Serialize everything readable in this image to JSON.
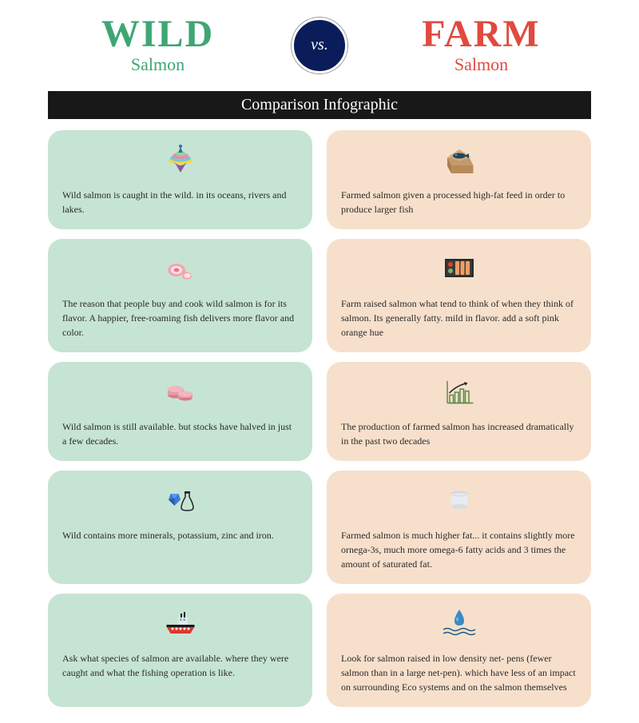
{
  "header": {
    "left_title": "WILD",
    "left_sub": "Salmon",
    "left_color": "#3fa673",
    "right_title": "FARM",
    "right_sub": "Salmon",
    "right_color": "#e04a3f",
    "vs_label": "vs.",
    "vs_bg": "#0a1d5a"
  },
  "banner": {
    "text": "Comparison Infographic",
    "bg": "#181818"
  },
  "colors": {
    "wild_card_bg": "#c6e4d4",
    "farm_card_bg": "#f7e0cb"
  },
  "rows": [
    {
      "wild": {
        "icon": "spintop",
        "text": "Wild salmon is caught in the wild. in its oceans, rivers and lakes."
      },
      "farm": {
        "icon": "box-fish",
        "text": "Farmed salmon given a processed high-fat feed in order to produce larger fish"
      }
    },
    {
      "wild": {
        "icon": "meat",
        "text": "The reason that people buy and cook wild salmon is for its flavor. A happier, free-roaming fish delivers more flavor and color."
      },
      "farm": {
        "icon": "sushi-tray",
        "text": "Farm raised salmon what tend to think of when they think of salmon. Its generally fatty. mild in flavor. add a soft pink orange hue"
      }
    },
    {
      "wild": {
        "icon": "coins",
        "text": "Wild salmon is still available. but stocks have halved in just a few decades."
      },
      "farm": {
        "icon": "chart-up",
        "text": "The production of farmed salmon has increased dramatically in the past two decades"
      }
    },
    {
      "wild": {
        "icon": "gem-flask",
        "text": "Wild contains more minerals, potassium, zinc and iron."
      },
      "farm": {
        "icon": "can",
        "text": "Farmed salmon is much higher fat... it contains slightly more ornega-3s, much more omega-6 fatty acids and 3 times the amount of saturated fat."
      }
    },
    {
      "wild": {
        "icon": "boat",
        "text": "Ask what species of salmon are available. where they were caught and what the fishing operation is like."
      },
      "farm": {
        "icon": "water-drop",
        "text": "Look for salmon raised in low density net- pens (fewer salmon than in a large net-pen). which have less of an impact on surrounding Eco systems and on the salmon themselves"
      }
    }
  ]
}
